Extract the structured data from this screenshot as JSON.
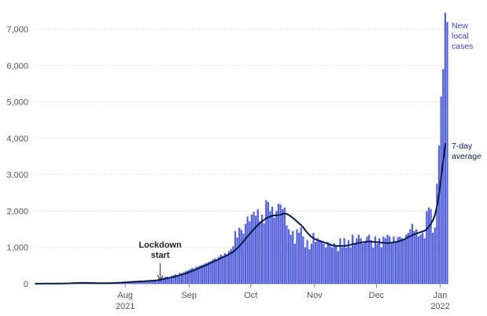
{
  "chart_data": {
    "type": "bar",
    "title": "",
    "xlabel": "",
    "ylabel": "",
    "ylim": [
      0,
      7500
    ],
    "y_ticks": [
      "0",
      "1,000",
      "2,000",
      "3,000",
      "4,000",
      "5,000",
      "6,000",
      "7,000"
    ],
    "x_ticks": [
      {
        "date": "2021-08-01",
        "label": "Aug",
        "sublabel": "2021"
      },
      {
        "date": "2021-09-01",
        "label": "Sep",
        "sublabel": ""
      },
      {
        "date": "2021-10-01",
        "label": "Oct",
        "sublabel": ""
      },
      {
        "date": "2021-11-01",
        "label": "Nov",
        "sublabel": ""
      },
      {
        "date": "2021-12-01",
        "label": "Dec",
        "sublabel": ""
      },
      {
        "date": "2022-01-01",
        "label": "Jan",
        "sublabel": "2022"
      }
    ],
    "x_start": "2021-06-18",
    "grid": true,
    "colors": {
      "bars": "#5562d9",
      "line": "#0b1a4d",
      "grid": "#dddddd"
    },
    "series": [
      {
        "name": "New local cases",
        "label_lines": [
          "New",
          "local",
          "cases"
        ],
        "type": "bar",
        "values": [
          3,
          3,
          3,
          4,
          4,
          4,
          4,
          5,
          5,
          5,
          5,
          6,
          6,
          6,
          6,
          6,
          10,
          18,
          25,
          30,
          30,
          28,
          26,
          25,
          24,
          20,
          20,
          20,
          18,
          16,
          12,
          15,
          16,
          15,
          18,
          20,
          22,
          25,
          28,
          30,
          30,
          40,
          50,
          45,
          50,
          55,
          58,
          60,
          60,
          65,
          70,
          70,
          80,
          80,
          85,
          85,
          90,
          100,
          110,
          120,
          130,
          150,
          170,
          190,
          200,
          170,
          210,
          230,
          260,
          240,
          300,
          290,
          320,
          350,
          370,
          400,
          430,
          420,
          460,
          480,
          500,
          520,
          550,
          570,
          600,
          620,
          660,
          700,
          680,
          740,
          800,
          770,
          840,
          810,
          900,
          960,
          1030,
          1450,
          1270,
          1540,
          1480,
          1380,
          1650,
          1850,
          1720,
          1900,
          1980,
          1870,
          2050,
          1720,
          1900,
          1660,
          2300,
          2250,
          2000,
          2120,
          1820,
          2000,
          2200,
          2180,
          2050,
          2100,
          1600,
          1500,
          1350,
          1450,
          1100,
          1500,
          1400,
          1550,
          1300,
          1000,
          1200,
          950,
          1100,
          1400,
          1150,
          1250,
          1200,
          1150,
          1100,
          1000,
          1150,
          1100,
          1000,
          1120,
          1050,
          900,
          1250,
          1000,
          1250,
          1000,
          1200,
          1000,
          1350,
          1100,
          1250,
          1350,
          1250,
          1100,
          1150,
          1300,
          1350,
          1200,
          1000,
          1300,
          1100,
          1250,
          1000,
          1300,
          1250,
          1350,
          1300,
          1100,
          1300,
          1150,
          1280,
          1300,
          1250,
          1200,
          1350,
          1400,
          1500,
          1650,
          1450,
          1500,
          1300,
          1350,
          1400,
          1250,
          2000,
          2100,
          2050,
          1400,
          1550,
          2750,
          3800,
          5150,
          5900,
          7450,
          7200
        ],
        "scale": [
          0,
          7500
        ]
      },
      {
        "name": "7-day average",
        "label_lines": [
          "7-day",
          "average"
        ],
        "type": "line",
        "values": [
          3,
          3,
          3,
          4,
          4,
          4,
          4,
          5,
          5,
          5,
          5,
          6,
          6,
          6,
          7,
          8,
          10,
          13,
          17,
          20,
          23,
          24,
          25,
          25,
          24,
          23,
          22,
          21,
          20,
          19,
          17,
          16,
          16,
          16,
          17,
          18,
          19,
          20,
          22,
          24,
          26,
          29,
          33,
          37,
          41,
          45,
          49,
          52,
          55,
          58,
          61,
          64,
          68,
          71,
          75,
          78,
          81,
          85,
          90,
          96,
          104,
          114,
          125,
          138,
          151,
          163,
          177,
          189,
          204,
          218,
          233,
          250,
          267,
          285,
          305,
          327,
          350,
          373,
          396,
          421,
          445,
          468,
          492,
          517,
          543,
          570,
          597,
          625,
          650,
          677,
          704,
          730,
          757,
          784,
          814,
          845,
          880,
          930,
          980,
          1040,
          1105,
          1170,
          1240,
          1310,
          1370,
          1440,
          1500,
          1560,
          1620,
          1670,
          1720,
          1760,
          1800,
          1830,
          1850,
          1870,
          1880,
          1880,
          1890,
          1900,
          1920,
          1930,
          1920,
          1890,
          1850,
          1810,
          1760,
          1710,
          1660,
          1610,
          1550,
          1470,
          1400,
          1340,
          1290,
          1250,
          1220,
          1200,
          1180,
          1160,
          1140,
          1120,
          1100,
          1080,
          1060,
          1050,
          1040,
          1040,
          1040,
          1040,
          1040,
          1050,
          1060,
          1070,
          1090,
          1100,
          1110,
          1120,
          1130,
          1140,
          1150,
          1160,
          1160,
          1160,
          1150,
          1150,
          1140,
          1140,
          1130,
          1130,
          1120,
          1120,
          1120,
          1130,
          1140,
          1150,
          1160,
          1180,
          1200,
          1220,
          1250,
          1280,
          1310,
          1340,
          1360,
          1380,
          1400,
          1420,
          1440,
          1460,
          1500,
          1570,
          1650,
          1750,
          1900,
          2150,
          2500,
          2950,
          3400,
          3850
        ],
        "scale": [
          0,
          7500
        ]
      }
    ],
    "annotations": [
      {
        "lines": [
          "Lockdown",
          "start"
        ],
        "date": "2021-08-18"
      }
    ]
  }
}
